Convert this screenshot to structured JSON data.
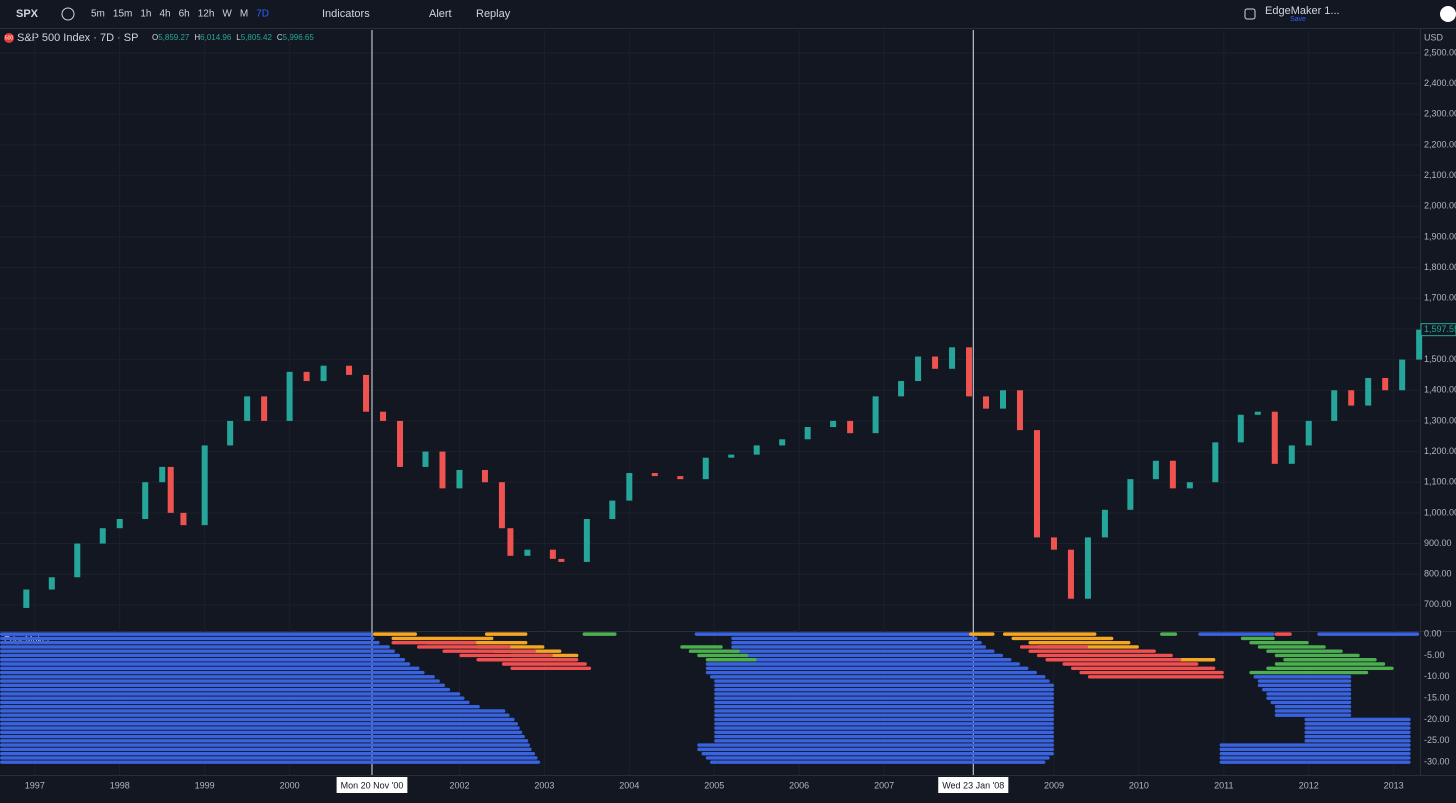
{
  "toolbar": {
    "symbol": "SPX",
    "intervals": [
      "5m",
      "15m",
      "1h",
      "4h",
      "6h",
      "12h",
      "W",
      "M",
      "7D"
    ],
    "indicators": "Indicators",
    "alert": "Alert",
    "replay": "Replay",
    "layout": "EdgeMaker 1...",
    "save": "Save",
    "currency": "USD"
  },
  "legend": {
    "icon": "500",
    "title": "S&P 500 Index · 7D · SP",
    "o": "O",
    "ov": "5,859.27",
    "h": "H",
    "hv": "6,014.96",
    "l": "L",
    "lv": "5,805.42",
    "c": "C",
    "cv": "5,996.65"
  },
  "chart_data": [
    {
      "type": "candlestick",
      "xlim": [
        1996.59,
        2013.31
      ],
      "ylim": [
        618,
        2575
      ],
      "t": [
        1996.6,
        1996.9,
        1997.2,
        1997.5,
        1997.8,
        1998.0,
        1998.3,
        1998.5,
        1998.6,
        1998.75,
        1999.0,
        1999.3,
        1999.5,
        1999.7,
        2000.0,
        2000.2,
        2000.4,
        2000.7,
        2000.9,
        2001.1,
        2001.3,
        2001.6,
        2001.8,
        2002.0,
        2002.3,
        2002.5,
        2002.6,
        2002.8,
        2003.1,
        2003.2,
        2003.5,
        2003.8,
        2004.0,
        2004.3,
        2004.6,
        2004.9,
        2005.2,
        2005.5,
        2005.8,
        2006.1,
        2006.4,
        2006.6,
        2006.9,
        2007.2,
        2007.4,
        2007.6,
        2007.8,
        2008.0,
        2008.2,
        2008.4,
        2008.6,
        2008.8,
        2009.0,
        2009.2,
        2009.4,
        2009.6,
        2009.9,
        2010.2,
        2010.4,
        2010.6,
        2010.9,
        2011.2,
        2011.4,
        2011.6,
        2011.8,
        2012.0,
        2012.3,
        2012.5,
        2012.7,
        2012.9,
        2013.1,
        2013.3
      ],
      "closes": [
        690,
        750,
        790,
        900,
        950,
        980,
        1100,
        1150,
        1000,
        960,
        1220,
        1300,
        1380,
        1300,
        1460,
        1430,
        1480,
        1450,
        1330,
        1300,
        1150,
        1200,
        1080,
        1140,
        1100,
        950,
        860,
        880,
        850,
        840,
        980,
        1040,
        1130,
        1120,
        1110,
        1180,
        1190,
        1220,
        1240,
        1280,
        1300,
        1260,
        1380,
        1430,
        1510,
        1470,
        1540,
        1380,
        1340,
        1400,
        1270,
        920,
        880,
        720,
        920,
        1010,
        1110,
        1170,
        1080,
        1100,
        1230,
        1320,
        1330,
        1160,
        1220,
        1300,
        1400,
        1350,
        1440,
        1400,
        1500,
        1597.59
      ],
      "last_label": "1,597.59",
      "yticks": [
        {
          "value": 2500,
          "label": "2,500.00"
        },
        {
          "value": 2400,
          "label": "2,400.00"
        },
        {
          "value": 2300,
          "label": "2,300.00"
        },
        {
          "value": 2200,
          "label": "2,200.00"
        },
        {
          "value": 2100,
          "label": "2,100.00"
        },
        {
          "value": 2000,
          "label": "2,000.00"
        },
        {
          "value": 1900,
          "label": "1,900.00"
        },
        {
          "value": 1800,
          "label": "1,800.00"
        },
        {
          "value": 1700,
          "label": "1,700.00"
        },
        {
          "value": 1600,
          "label": "1,600.00"
        },
        {
          "value": 1500,
          "label": "1,500.00"
        },
        {
          "value": 1400,
          "label": "1,400.00"
        },
        {
          "value": 1300,
          "label": "1,300.00"
        },
        {
          "value": 1200,
          "label": "1,200.00"
        },
        {
          "value": 1100,
          "label": "1,100.00"
        },
        {
          "value": 1000,
          "label": "1,000.00"
        },
        {
          "value": 900,
          "label": "900.00"
        },
        {
          "value": 800,
          "label": "800.00"
        },
        {
          "value": 700,
          "label": "700.00"
        }
      ],
      "xticks": [
        1997,
        1998,
        1999,
        2000,
        2002,
        2003,
        2004,
        2005,
        2006,
        2007,
        2009,
        2010,
        2011,
        2012,
        2013
      ],
      "markers": [
        {
          "t": 2000.97,
          "label": "Mon 20 Nov '00"
        },
        {
          "t": 2008.05,
          "label": "Wed 23 Jan '08"
        }
      ]
    },
    {
      "type": "bars",
      "title": "EdgeMaker",
      "xlim": [
        1996.59,
        2013.31
      ],
      "ylim": [
        -32.3,
        0.5
      ],
      "yticks": [
        {
          "value": 0,
          "label": "0.00"
        },
        {
          "value": -5,
          "label": "-5.00"
        },
        {
          "value": -10,
          "label": "-10.00"
        },
        {
          "value": -15,
          "label": "-15.00"
        },
        {
          "value": -20,
          "label": "-20.00"
        },
        {
          "value": -25,
          "label": "-25.00"
        },
        {
          "value": -30,
          "label": "-30.00"
        }
      ],
      "series": [
        {
          "color": "#3a63e0",
          "rows": [
            [
              0,
              1996.59,
              2000.97
            ],
            [
              -1,
              1996.59,
              2001.0
            ],
            [
              -2,
              1996.59,
              2001.06
            ],
            [
              -3,
              1996.59,
              2001.18
            ],
            [
              -4,
              1996.59,
              2001.24
            ],
            [
              -5,
              1996.59,
              2001.3
            ],
            [
              -6,
              1996.59,
              2001.36
            ],
            [
              -7,
              1996.59,
              2001.42
            ],
            [
              -8,
              1996.59,
              2001.53
            ],
            [
              -9,
              1996.59,
              2001.59
            ],
            [
              -10,
              1996.59,
              2001.71
            ],
            [
              -11,
              1996.59,
              2001.77
            ],
            [
              -12,
              1996.59,
              2001.83
            ],
            [
              -13,
              1996.59,
              2001.89
            ],
            [
              -14,
              1996.59,
              2002.01
            ],
            [
              -15,
              1996.59,
              2002.06
            ],
            [
              -16,
              1996.59,
              2002.12
            ],
            [
              -17,
              1996.59,
              2002.24
            ],
            [
              -18,
              1996.59,
              2002.54
            ],
            [
              -19,
              1996.59,
              2002.59
            ],
            [
              -20,
              1996.59,
              2002.65
            ],
            [
              -21,
              1996.59,
              2002.69
            ],
            [
              -22,
              1996.59,
              2002.71
            ],
            [
              -23,
              1996.59,
              2002.74
            ],
            [
              -24,
              1996.59,
              2002.77
            ],
            [
              -25,
              1996.59,
              2002.81
            ],
            [
              -26,
              1996.59,
              2002.83
            ],
            [
              -27,
              1996.59,
              2002.85
            ],
            [
              -28,
              1996.59,
              2002.89
            ],
            [
              -29,
              1996.59,
              2002.92
            ],
            [
              -30,
              1996.59,
              2002.95
            ],
            [
              0,
              2004.77,
              2008.05
            ],
            [
              -1,
              2005.2,
              2008.1
            ],
            [
              -2,
              2005.2,
              2008.15
            ],
            [
              -3,
              2005.2,
              2008.2
            ],
            [
              -4,
              2005.2,
              2008.3
            ],
            [
              -5,
              2005.3,
              2008.4
            ],
            [
              -6,
              2005.4,
              2008.5
            ],
            [
              -7,
              2004.9,
              2008.6
            ],
            [
              -8,
              2004.9,
              2008.7
            ],
            [
              -9,
              2004.9,
              2008.8
            ],
            [
              -10,
              2004.95,
              2008.9
            ],
            [
              -11,
              2005.0,
              2008.95
            ],
            [
              -12,
              2005.0,
              2009.0
            ],
            [
              -13,
              2005.0,
              2009.0
            ],
            [
              -14,
              2005.0,
              2009.0
            ],
            [
              -15,
              2005.0,
              2009.0
            ],
            [
              -16,
              2005.0,
              2009.0
            ],
            [
              -17,
              2005.0,
              2009.0
            ],
            [
              -18,
              2005.0,
              2009.0
            ],
            [
              -19,
              2005.0,
              2009.0
            ],
            [
              -20,
              2005.0,
              2009.0
            ],
            [
              -21,
              2005.0,
              2009.0
            ],
            [
              -22,
              2005.0,
              2009.0
            ],
            [
              -23,
              2005.0,
              2009.0
            ],
            [
              -24,
              2005.0,
              2009.0
            ],
            [
              -25,
              2005.0,
              2009.0
            ],
            [
              -26,
              2004.8,
              2009.0
            ],
            [
              -27,
              2004.8,
              2009.0
            ],
            [
              -28,
              2004.85,
              2009.0
            ],
            [
              -29,
              2004.9,
              2008.95
            ],
            [
              -30,
              2004.95,
              2008.9
            ],
            [
              0,
              2010.7,
              2011.6
            ],
            [
              0,
              2012.1,
              2013.3
            ],
            [
              -10,
              2011.35,
              2012.5
            ],
            [
              -11,
              2011.4,
              2012.5
            ],
            [
              -12,
              2011.4,
              2012.5
            ],
            [
              -13,
              2011.45,
              2012.5
            ],
            [
              -14,
              2011.5,
              2012.5
            ],
            [
              -15,
              2011.5,
              2012.5
            ],
            [
              -16,
              2011.55,
              2012.5
            ],
            [
              -17,
              2011.6,
              2012.5
            ],
            [
              -18,
              2011.6,
              2012.5
            ],
            [
              -19,
              2011.6,
              2012.5
            ],
            [
              -20,
              2011.95,
              2013.2
            ],
            [
              -21,
              2011.95,
              2013.2
            ],
            [
              -22,
              2011.95,
              2013.2
            ],
            [
              -23,
              2011.95,
              2013.2
            ],
            [
              -24,
              2011.95,
              2013.2
            ],
            [
              -25,
              2011.95,
              2013.2
            ],
            [
              -26,
              2010.95,
              2013.2
            ],
            [
              -27,
              2010.95,
              2013.2
            ],
            [
              -28,
              2010.95,
              2013.2
            ],
            [
              -29,
              2010.95,
              2013.2
            ],
            [
              -30,
              2010.95,
              2013.2
            ]
          ]
        },
        {
          "color": "#f5a623",
          "rows": [
            [
              0,
              2000.98,
              2001.5
            ],
            [
              0,
              2002.3,
              2002.8
            ],
            [
              -1,
              2001.2,
              2002.4
            ],
            [
              -2,
              2001.6,
              2002.8
            ],
            [
              -3,
              2002.2,
              2003.0
            ],
            [
              -4,
              2002.4,
              2003.2
            ],
            [
              -5,
              2002.6,
              2003.4
            ],
            [
              0,
              2008.0,
              2008.3
            ],
            [
              0,
              2008.4,
              2009.5
            ],
            [
              -1,
              2008.5,
              2009.7
            ],
            [
              -2,
              2008.7,
              2009.9
            ],
            [
              -3,
              2008.8,
              2010.0
            ],
            [
              -6,
              2009.5,
              2010.9
            ]
          ]
        },
        {
          "color": "#f0504f",
          "rows": [
            [
              -2,
              2001.2,
              2002.2
            ],
            [
              -3,
              2001.5,
              2002.6
            ],
            [
              -4,
              2001.8,
              2002.9
            ],
            [
              -5,
              2002.0,
              2003.1
            ],
            [
              -6,
              2002.2,
              2003.4
            ],
            [
              -7,
              2002.5,
              2003.5
            ],
            [
              -8,
              2002.6,
              2003.55
            ],
            [
              -3,
              2008.6,
              2009.4
            ],
            [
              -4,
              2008.7,
              2010.2
            ],
            [
              -5,
              2008.8,
              2010.4
            ],
            [
              -6,
              2008.9,
              2010.5
            ],
            [
              -7,
              2009.1,
              2010.7
            ],
            [
              -8,
              2009.2,
              2010.9
            ],
            [
              -9,
              2009.3,
              2011.0
            ],
            [
              -10,
              2009.4,
              2011.0
            ],
            [
              0,
              2011.6,
              2011.8
            ]
          ]
        },
        {
          "color": "#4caf50",
          "rows": [
            [
              0,
              2003.45,
              2003.85
            ],
            [
              -3,
              2004.6,
              2005.1
            ],
            [
              -4,
              2004.7,
              2005.3
            ],
            [
              -5,
              2004.8,
              2005.4
            ],
            [
              -6,
              2004.9,
              2005.5
            ],
            [
              0,
              2010.25,
              2010.45
            ],
            [
              -1,
              2011.2,
              2011.6
            ],
            [
              -2,
              2011.3,
              2012.0
            ],
            [
              -3,
              2011.4,
              2012.2
            ],
            [
              -4,
              2011.5,
              2012.4
            ],
            [
              -5,
              2011.6,
              2012.6
            ],
            [
              -6,
              2011.7,
              2012.8
            ],
            [
              -7,
              2011.6,
              2012.9
            ],
            [
              -8,
              2011.5,
              2013.0
            ],
            [
              -9,
              2011.3,
              2012.7
            ]
          ]
        }
      ]
    }
  ]
}
